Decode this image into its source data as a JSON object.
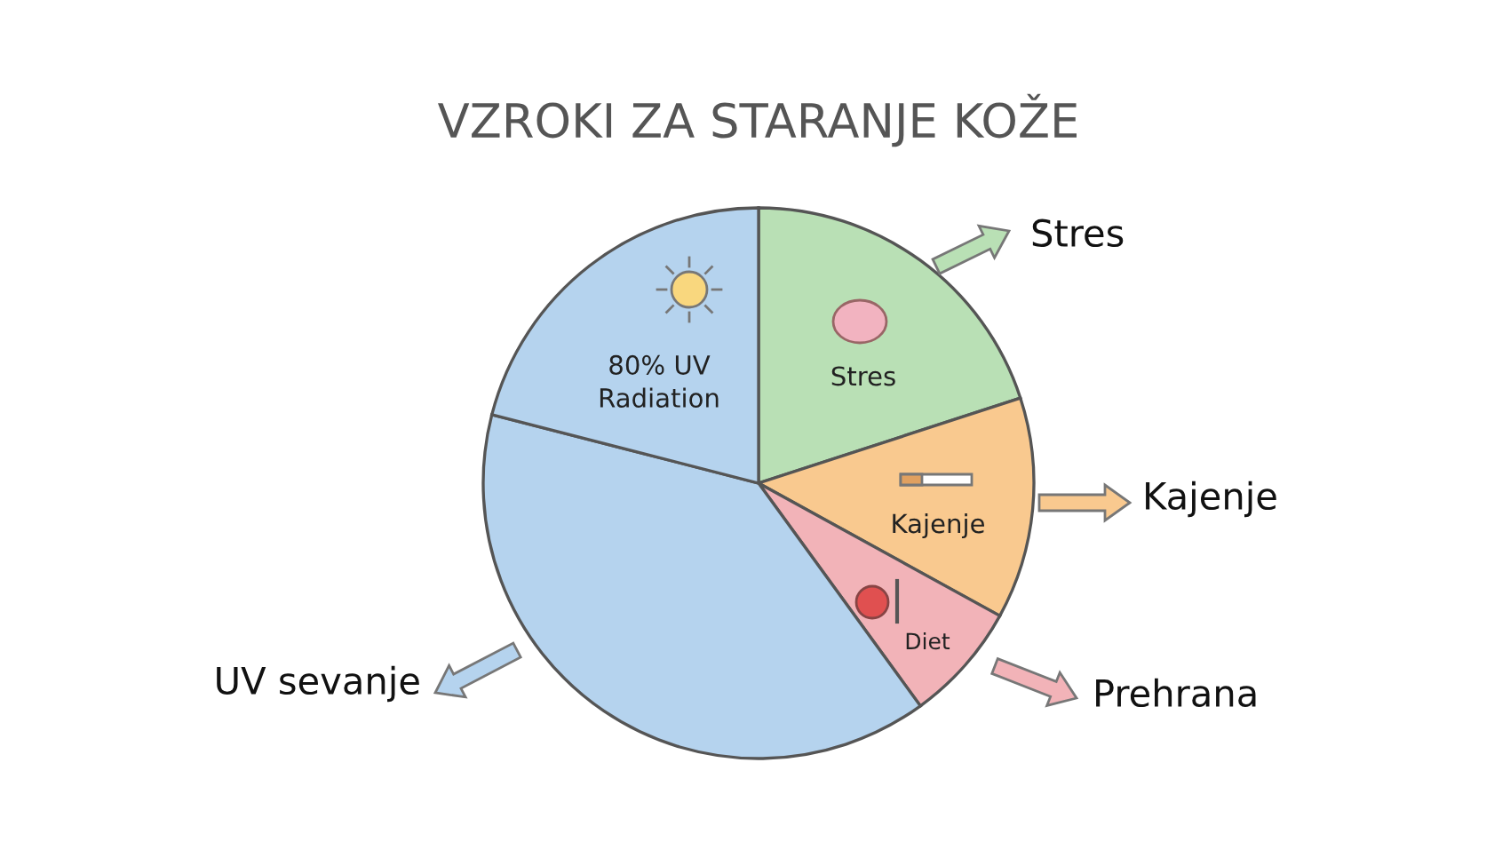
{
  "chart_data": {
    "type": "pie",
    "title": "VZROKI ZA STARANJE KOŽE",
    "categories": [
      "Stres",
      "Kajenje",
      "Diet",
      null,
      "80% UV\nRadiation"
    ],
    "values": [
      20,
      13,
      7,
      39,
      21
    ],
    "colors": [
      "#b9e0b5",
      "#f9c98f",
      "#f2b3b8",
      "#b5d3ee",
      "#b5d3ee"
    ],
    "annotations": [
      "Stres",
      "Kajenje",
      "Prehrana",
      "UV sevanje"
    ],
    "legend": false
  }
}
